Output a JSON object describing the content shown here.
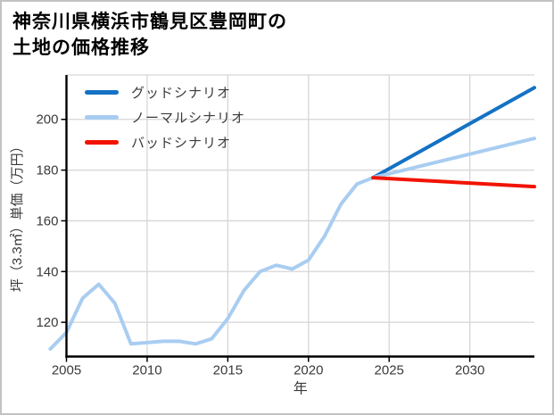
{
  "figure": {
    "title_line1": "神奈川県横浜市鶴見区豊岡町の",
    "title_line2": "土地の価格推移"
  },
  "chart_data": {
    "type": "line",
    "title": "神奈川県横浜市鶴見区豊岡町の土地の価格推移",
    "xlabel": "年",
    "ylabel": "坪（3.3㎡）単価（万円）",
    "xlim": [
      2005,
      2034
    ],
    "ylim": [
      106.5,
      217.5
    ],
    "xticks": [
      2005,
      2010,
      2015,
      2020,
      2025,
      2030
    ],
    "yticks": [
      120,
      140,
      160,
      180,
      200
    ],
    "grid": true,
    "legend_position": "upper-left",
    "colors": {
      "good": "#1472c4",
      "normal": "#a9cdf1",
      "bad": "#f11300",
      "gridline": "#d6d6d6",
      "spine": "#000000",
      "tick_text": "#3a3a3a"
    },
    "series": [
      {
        "key": "good-scenario",
        "name": "グッドシナリオ",
        "color": "#1472c4",
        "x": [
          2024,
          2034
        ],
        "values": [
          177,
          212.5
        ]
      },
      {
        "key": "normal-scenario",
        "name": "ノーマルシナリオ",
        "color": "#a9cdf1",
        "x": [
          2004,
          2005,
          2006,
          2007,
          2008,
          2009,
          2010,
          2011,
          2012,
          2013,
          2014,
          2015,
          2016,
          2017,
          2018,
          2019,
          2020,
          2021,
          2022,
          2023,
          2024,
          2034
        ],
        "values": [
          109.5,
          116,
          129.5,
          135,
          127.5,
          111.5,
          112,
          112.5,
          112.5,
          111.5,
          113.5,
          121.5,
          132.5,
          140,
          142.5,
          141,
          144.5,
          154,
          166.5,
          174.5,
          177,
          192.5
        ]
      },
      {
        "key": "bad-scenario",
        "name": "バッドシナリオ",
        "color": "#f11300",
        "x": [
          2024,
          2034
        ],
        "values": [
          177,
          173.5
        ]
      }
    ]
  }
}
